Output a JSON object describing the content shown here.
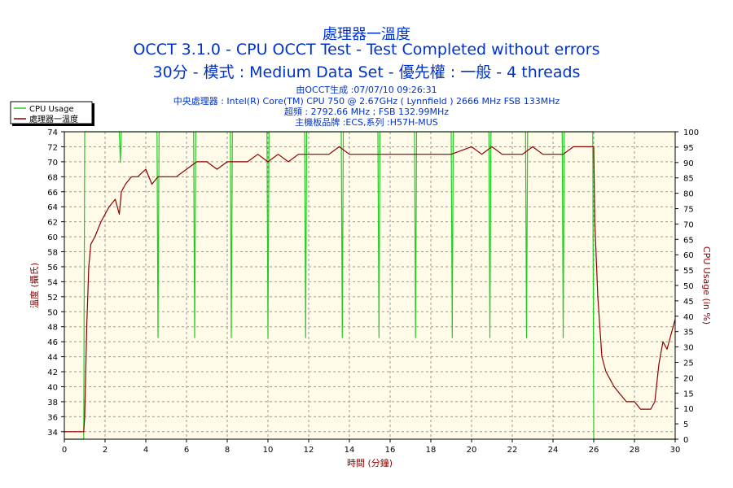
{
  "header": {
    "title": "處理器一溫度",
    "subtitle1": "OCCT 3.1.0 - CPU OCCT Test - Test Completed without errors",
    "subtitle2": "30分 - 模式 : Medium Data Set - 優先權 : 一般 - 4 threads",
    "info": [
      "由OCCT生成 :07/07/10 09:26:31",
      "中央處理器 : Intel(R) Core(TM) CPU 750 @ 2.67GHz ( Lynnfield ) 2666 MHz FSB 133MHz",
      "超頻 : 2792.66 MHz ; FSB 132.99MHz",
      "主機板品牌 :ECS,系列 :H57H-MUS"
    ]
  },
  "colors": {
    "title": "#0033cc",
    "plot_bg": "#fffbe8",
    "grid": "#999999",
    "temp_series": "#8b0000",
    "cpu_series": "#22cc22",
    "axis_text": "#000000",
    "temp_axis_label": "#8b0000",
    "cpu_axis_label": "#8b0000",
    "xlabel_color": "#8b0000"
  },
  "chart_data": {
    "type": "line",
    "xlabel": "時間 (分鐘)",
    "ylabel_left": "溫度 (攝氏)",
    "ylabel_right": "CPU Usage (in %)",
    "xlim": [
      0,
      30
    ],
    "ylim_left": [
      33,
      74
    ],
    "ylim_right": [
      0,
      100
    ],
    "x_ticks": [
      0,
      2,
      4,
      6,
      8,
      10,
      12,
      14,
      16,
      18,
      20,
      22,
      24,
      26,
      28,
      30
    ],
    "y_left_ticks": [
      34,
      36,
      38,
      40,
      42,
      44,
      46,
      48,
      50,
      52,
      54,
      56,
      58,
      60,
      62,
      64,
      66,
      68,
      70,
      72,
      74
    ],
    "y_right_ticks": [
      0,
      5,
      10,
      15,
      20,
      25,
      30,
      35,
      40,
      45,
      50,
      55,
      60,
      65,
      70,
      75,
      80,
      85,
      90,
      95,
      100
    ],
    "grid": true,
    "legend_position": "top-left",
    "series": [
      {
        "name": "CPU Usage",
        "axis": "right",
        "x": [
          0,
          0.95,
          1.0,
          1.05,
          1.1,
          2.7,
          2.75,
          2.8,
          4.55,
          4.6,
          4.65,
          6.35,
          6.4,
          6.45,
          8.15,
          8.2,
          8.25,
          9.95,
          10.0,
          10.05,
          11.8,
          11.85,
          11.9,
          13.6,
          13.65,
          13.7,
          15.4,
          15.45,
          15.5,
          17.2,
          17.25,
          17.3,
          19.0,
          19.05,
          19.1,
          20.85,
          20.9,
          20.95,
          22.65,
          22.7,
          22.75,
          24.45,
          24.5,
          24.55,
          25.95,
          26.0,
          26.05,
          30
        ],
        "values": [
          0,
          0,
          100,
          100,
          100,
          100,
          90,
          100,
          100,
          33,
          100,
          100,
          33,
          100,
          100,
          33,
          100,
          100,
          33,
          100,
          100,
          33,
          100,
          100,
          33,
          100,
          100,
          33,
          100,
          100,
          33,
          100,
          100,
          33,
          100,
          100,
          33,
          100,
          100,
          33,
          100,
          100,
          33,
          100,
          100,
          0,
          0,
          0
        ]
      },
      {
        "name": "處理器一溫度",
        "axis": "left",
        "x": [
          0,
          0.95,
          1.0,
          1.1,
          1.2,
          1.3,
          1.5,
          1.8,
          2.0,
          2.2,
          2.5,
          2.7,
          2.8,
          3.0,
          3.3,
          3.6,
          4.0,
          4.3,
          4.6,
          5.0,
          5.5,
          6.0,
          6.5,
          7.0,
          7.5,
          8.0,
          8.5,
          9.0,
          9.5,
          10.0,
          10.5,
          11.0,
          11.5,
          12.0,
          12.5,
          13.0,
          13.5,
          14.0,
          15.0,
          16.0,
          17.0,
          18.0,
          19.0,
          20.0,
          20.5,
          21.0,
          21.5,
          22.0,
          22.5,
          23.0,
          23.5,
          24.0,
          24.5,
          25.0,
          25.5,
          25.8,
          26.0,
          26.05,
          26.2,
          26.4,
          26.6,
          26.8,
          27.0,
          27.3,
          27.6,
          28.0,
          28.3,
          28.6,
          28.8,
          29.0,
          29.2,
          29.4,
          29.6,
          29.8,
          30.0
        ],
        "values": [
          34,
          34,
          36,
          48,
          56,
          59,
          60,
          62,
          63,
          64,
          65,
          63,
          66,
          67,
          68,
          68,
          69,
          67,
          68,
          68,
          68,
          69,
          70,
          70,
          69,
          70,
          70,
          70,
          71,
          70,
          71,
          70,
          71,
          71,
          71,
          71,
          72,
          71,
          71,
          71,
          71,
          71,
          71,
          72,
          71,
          72,
          71,
          71,
          71,
          72,
          71,
          71,
          71,
          72,
          72,
          72,
          72,
          62,
          52,
          44,
          42,
          41,
          40,
          39,
          38,
          38,
          37,
          37,
          37,
          38,
          43,
          46,
          45,
          47,
          49
        ]
      }
    ]
  }
}
